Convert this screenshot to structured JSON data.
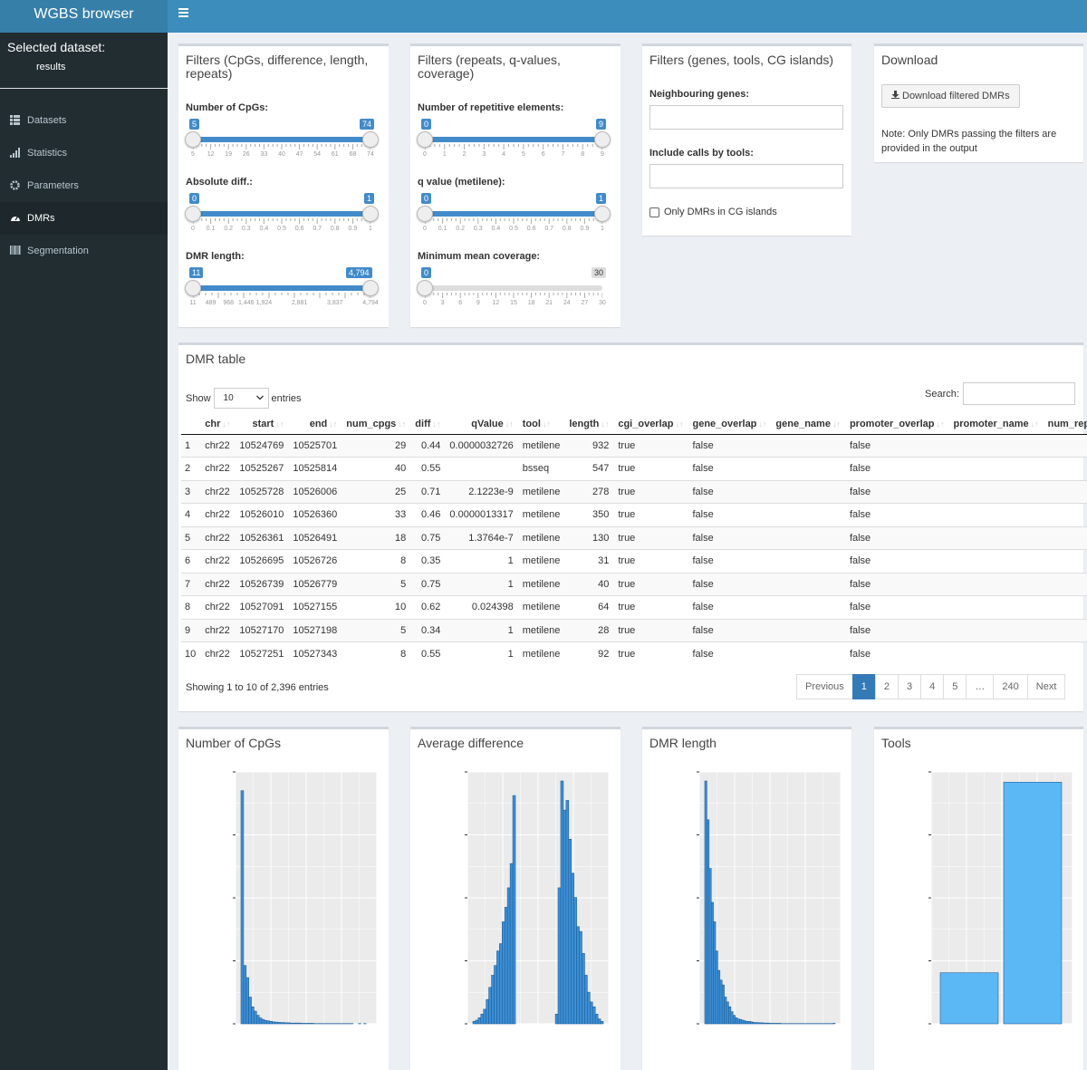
{
  "app_title": "WGBS browser",
  "sidebar": {
    "selected_label": "Selected dataset:",
    "dataset": "results",
    "items": [
      {
        "label": "Datasets",
        "icon": "table-icon"
      },
      {
        "label": "Statistics",
        "icon": "bar-chart-icon"
      },
      {
        "label": "Parameters",
        "icon": "gear-icon"
      },
      {
        "label": "DMRs",
        "icon": "dashboard-icon",
        "active": true
      },
      {
        "label": "Segmentation",
        "icon": "barcode-icon"
      }
    ]
  },
  "filters1": {
    "title": "Filters (CpGs, difference, length, repeats)",
    "cpgs": {
      "label": "Number of CpGs:",
      "min": "5",
      "max": "74",
      "ticks": [
        "5",
        "12",
        "19",
        "26",
        "33",
        "40",
        "47",
        "54",
        "61",
        "68",
        "74"
      ]
    },
    "diff": {
      "label": "Absolute diff.:",
      "min": "0",
      "max": "1",
      "ticks": [
        "0",
        "0.1",
        "0.2",
        "0.3",
        "0.4",
        "0.5",
        "0.6",
        "0.7",
        "0.8",
        "0.9",
        "1"
      ]
    },
    "length": {
      "label": "DMR length:",
      "min": "11",
      "max": "4,794",
      "ticks": [
        "11",
        "489",
        "968",
        "1,446",
        "1,924",
        "2,881",
        "3,837",
        "4,794"
      ]
    }
  },
  "filters2": {
    "title": "Filters (repeats, q-values, coverage)",
    "repeats": {
      "label": "Number of repetitive elements:",
      "min": "0",
      "max": "9",
      "ticks": [
        "0",
        "1",
        "2",
        "3",
        "4",
        "5",
        "6",
        "7",
        "8",
        "9"
      ]
    },
    "qvalue": {
      "label": "q value (metilene):",
      "min": "0",
      "max": "1",
      "ticks": [
        "0",
        "0.1",
        "0.2",
        "0.3",
        "0.4",
        "0.5",
        "0.6",
        "0.7",
        "0.8",
        "0.9",
        "1"
      ]
    },
    "coverage": {
      "label": "Minimum mean coverage:",
      "min": "0",
      "max": "30",
      "ticks": [
        "0",
        "3",
        "6",
        "9",
        "12",
        "15",
        "18",
        "21",
        "24",
        "27",
        "30"
      ]
    }
  },
  "filters3": {
    "title": "Filters (genes, tools, CG islands)",
    "genes_label": "Neighbouring genes:",
    "tools_label": "Include calls by tools:",
    "cgi_label": "Only DMRs in CG islands"
  },
  "download": {
    "title": "Download",
    "button": "Download filtered DMRs",
    "note": "Note: Only DMRs passing the filters are provided in the output"
  },
  "table": {
    "title": "DMR table",
    "show": "Show",
    "entries_value": "10",
    "entries": "entries",
    "search": "Search:",
    "columns": [
      "chr",
      "start",
      "end",
      "num_cpgs",
      "diff",
      "qValue",
      "tool",
      "length",
      "cgi_overlap",
      "gene_overlap",
      "gene_name",
      "promoter_overlap",
      "promoter_name",
      "num_repeats"
    ],
    "rows": [
      [
        "1",
        "chr22",
        "10524769",
        "10525701",
        "29",
        "0.44",
        "0.0000032726",
        "metilene",
        "932",
        "true",
        "false",
        "",
        "false",
        "",
        ""
      ],
      [
        "2",
        "chr22",
        "10525267",
        "10525814",
        "40",
        "0.55",
        "",
        "bsseq",
        "547",
        "true",
        "false",
        "",
        "false",
        "",
        ""
      ],
      [
        "3",
        "chr22",
        "10525728",
        "10526006",
        "25",
        "0.71",
        "2.1223e-9",
        "metilene",
        "278",
        "true",
        "false",
        "",
        "false",
        "",
        ""
      ],
      [
        "4",
        "chr22",
        "10526010",
        "10526360",
        "33",
        "0.46",
        "0.0000013317",
        "metilene",
        "350",
        "true",
        "false",
        "",
        "false",
        "",
        ""
      ],
      [
        "5",
        "chr22",
        "10526361",
        "10526491",
        "18",
        "0.75",
        "1.3764e-7",
        "metilene",
        "130",
        "true",
        "false",
        "",
        "false",
        "",
        ""
      ],
      [
        "6",
        "chr22",
        "10526695",
        "10526726",
        "8",
        "0.35",
        "1",
        "metilene",
        "31",
        "true",
        "false",
        "",
        "false",
        "",
        ""
      ],
      [
        "7",
        "chr22",
        "10526739",
        "10526779",
        "5",
        "0.75",
        "1",
        "metilene",
        "40",
        "true",
        "false",
        "",
        "false",
        "",
        ""
      ],
      [
        "8",
        "chr22",
        "10527091",
        "10527155",
        "10",
        "0.62",
        "0.024398",
        "metilene",
        "64",
        "true",
        "false",
        "",
        "false",
        "",
        ""
      ],
      [
        "9",
        "chr22",
        "10527170",
        "10527198",
        "5",
        "0.34",
        "1",
        "metilene",
        "28",
        "true",
        "false",
        "",
        "false",
        "",
        ""
      ],
      [
        "10",
        "chr22",
        "10527251",
        "10527343",
        "8",
        "0.55",
        "1",
        "metilene",
        "92",
        "true",
        "false",
        "",
        "false",
        "",
        ""
      ]
    ],
    "info": "Showing 1 to 10 of 2,396 entries",
    "pages": [
      "Previous",
      "1",
      "2",
      "3",
      "4",
      "5",
      "…",
      "240",
      "Next"
    ]
  },
  "plots": {
    "cpgs_title": "Number of CpGs",
    "diff_title": "Average difference",
    "length_title": "DMR length",
    "tools_title": "Tools"
  },
  "chart_data": [
    {
      "type": "bar",
      "title": "Number of CpGs",
      "ylim": [
        0,
        1000
      ],
      "values": [
        960,
        240,
        190,
        110,
        70,
        52,
        35,
        24,
        18,
        14,
        12,
        10,
        8,
        7,
        6,
        5,
        5,
        4,
        4,
        3,
        3,
        3,
        3,
        2,
        2,
        2,
        2,
        2,
        1,
        1,
        1,
        1,
        1,
        1,
        1,
        1,
        1,
        1,
        1,
        1,
        1,
        1,
        1,
        0,
        0,
        1,
        0,
        1,
        0,
        0
      ]
    },
    {
      "type": "bar",
      "title": "Average difference",
      "ylim": [
        0,
        1000
      ],
      "values": [
        10,
        15,
        25,
        40,
        60,
        100,
        150,
        200,
        240,
        300,
        330,
        420,
        480,
        560,
        660,
        940,
        0,
        0,
        0,
        0,
        0,
        0,
        0,
        0,
        0,
        0,
        0,
        0,
        0,
        0,
        0,
        40,
        560,
        1000,
        880,
        920,
        760,
        620,
        520,
        400,
        380,
        290,
        200,
        130,
        90,
        70,
        40,
        20,
        10
      ]
    },
    {
      "type": "bar",
      "title": "DMR length",
      "ylim": [
        0,
        1000
      ],
      "values": [
        1000,
        840,
        640,
        500,
        420,
        300,
        220,
        180,
        160,
        110,
        90,
        70,
        50,
        35,
        25,
        20,
        18,
        15,
        12,
        10,
        10,
        8,
        6,
        5,
        5,
        4,
        4,
        3,
        3,
        3,
        2,
        2,
        2,
        2,
        2,
        1,
        1,
        1,
        1,
        1,
        1,
        1,
        1,
        1,
        1,
        1,
        1,
        1,
        1,
        1,
        1,
        1,
        1,
        1,
        1,
        1,
        1,
        1,
        1,
        2
      ]
    },
    {
      "type": "bar",
      "title": "Tools",
      "ylim": [
        0,
        2000
      ],
      "values": [
        420,
        1990
      ]
    }
  ]
}
